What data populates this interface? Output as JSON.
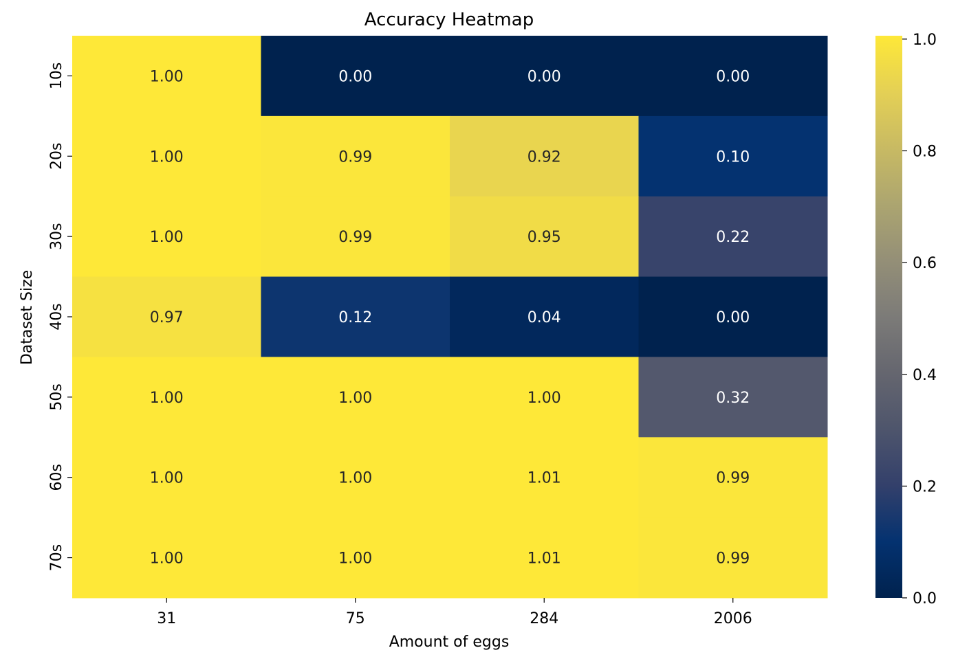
{
  "chart_data": {
    "type": "heatmap",
    "title": "Accuracy Heatmap",
    "xlabel": "Amount of eggs",
    "ylabel": "Dataset Size",
    "x_categories": [
      "31",
      "75",
      "284",
      "2006"
    ],
    "y_categories": [
      "10s",
      "20s",
      "30s",
      "40s",
      "50s",
      "60s",
      "70s"
    ],
    "values": [
      [
        1.0,
        0.0,
        0.0,
        0.0
      ],
      [
        1.0,
        0.99,
        0.92,
        0.1
      ],
      [
        1.0,
        0.99,
        0.95,
        0.22
      ],
      [
        0.97,
        0.12,
        0.04,
        0.0
      ],
      [
        1.0,
        1.0,
        1.0,
        0.32
      ],
      [
        1.0,
        1.0,
        1.01,
        0.99
      ],
      [
        1.0,
        1.0,
        1.01,
        0.99
      ]
    ],
    "value_format": "0.00",
    "colormap": "cividis",
    "colorbar": {
      "range": [
        0,
        1.0
      ],
      "ticks": [
        0.0,
        0.2,
        0.4,
        0.6,
        0.8,
        1.0
      ],
      "tick_labels": [
        "0.0",
        "0.2",
        "0.4",
        "0.6",
        "0.8",
        "1.0"
      ]
    },
    "colors": {
      "low": "#00224e",
      "mid": "#7c7b78",
      "high": "#fee838",
      "dark_text": "#262626",
      "light_text": "#ffffff"
    }
  }
}
